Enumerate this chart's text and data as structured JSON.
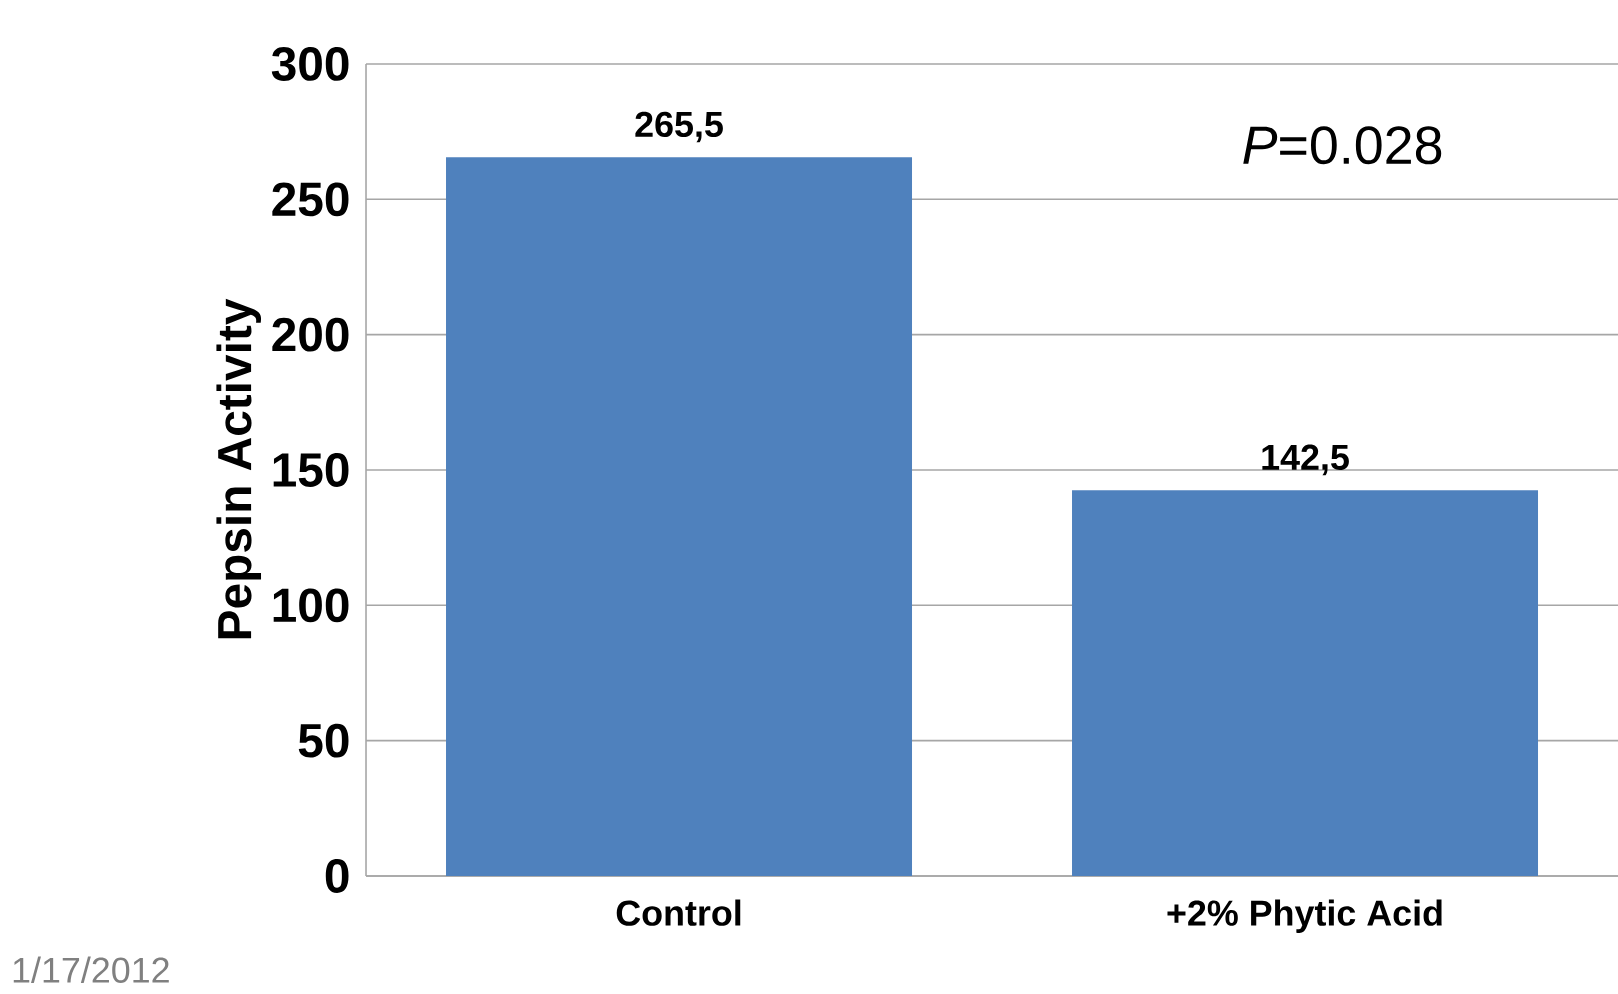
{
  "chart_data": {
    "type": "bar",
    "ylabel": "Pepsin Activity",
    "categories": [
      "Control",
      "+2% Phytic Acid"
    ],
    "values": [
      265.5,
      142.5
    ],
    "value_labels": [
      "265,5",
      "142,5"
    ],
    "color": "#4f81bd",
    "ylim": [
      0,
      300
    ],
    "yticks": [
      0,
      50,
      100,
      150,
      200,
      250,
      300
    ],
    "grid": "y",
    "annotations": [
      "*P*=0.028",
      "1/17/2012"
    ]
  }
}
